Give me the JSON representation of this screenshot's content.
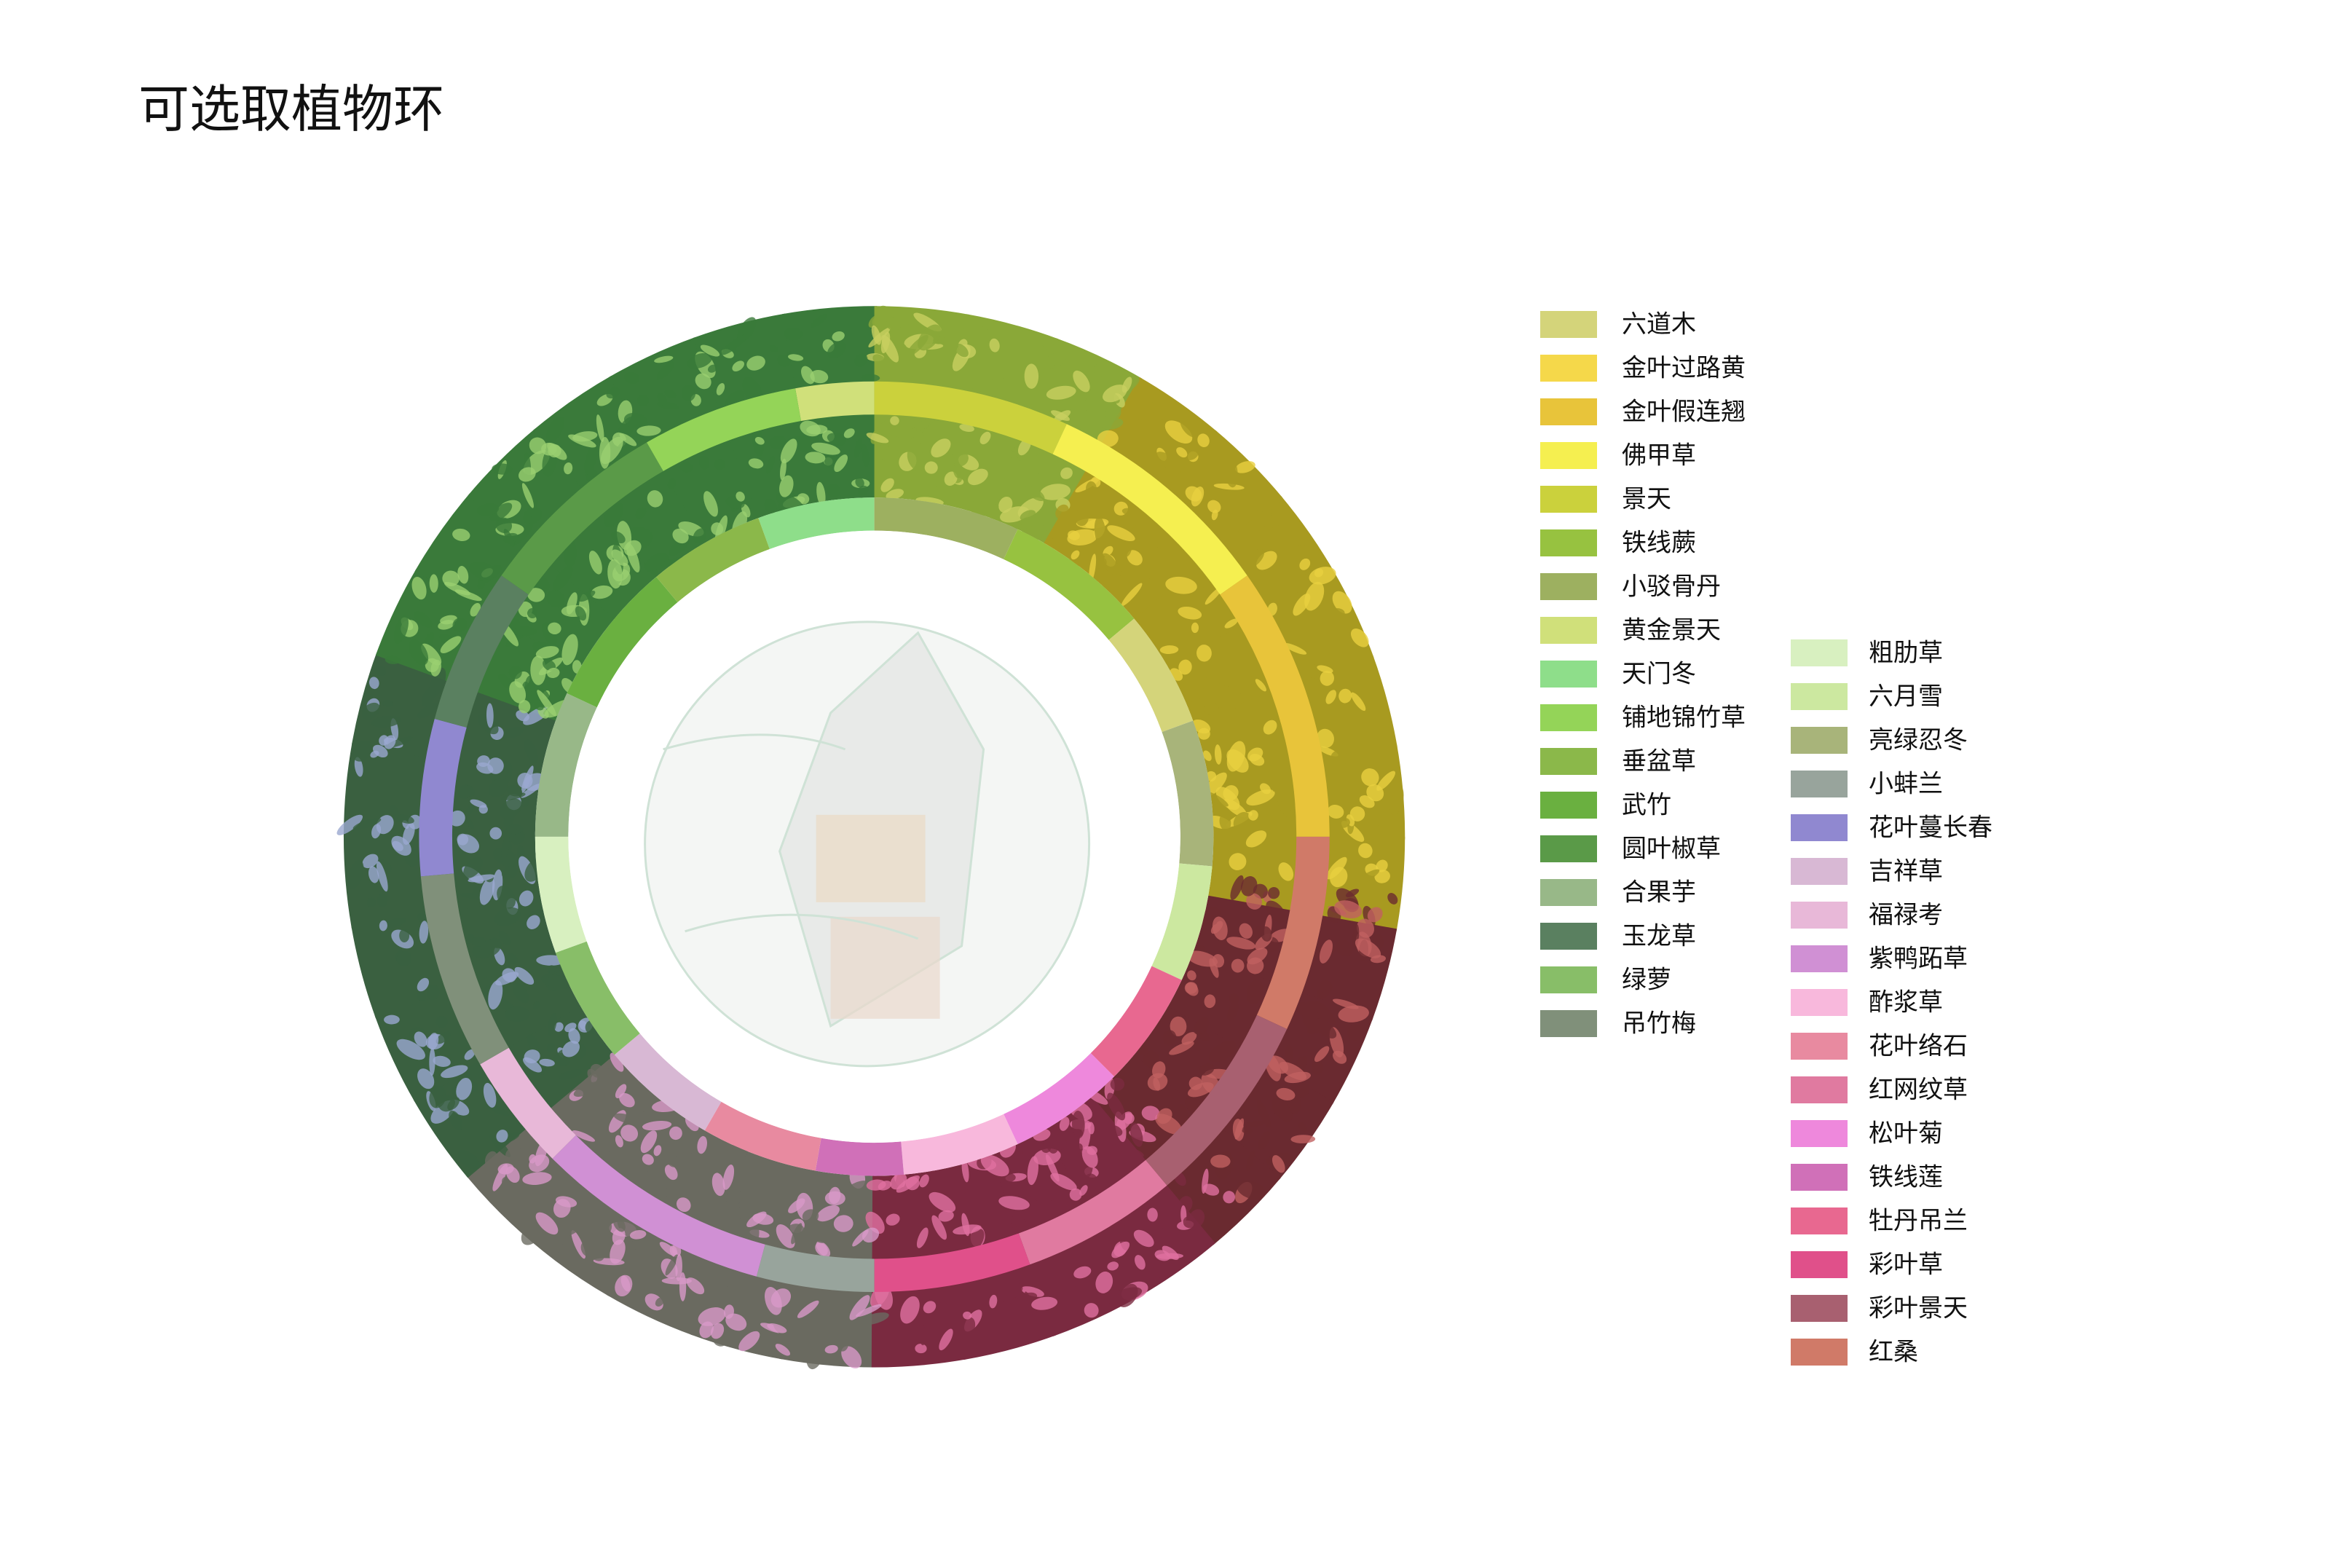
{
  "title": "可选取植物环",
  "legend": {
    "column_1": [
      {
        "label": "六道木",
        "color": "#d4d47a"
      },
      {
        "label": "金叶过路黄",
        "color": "#f5d84a"
      },
      {
        "label": "金叶假连翘",
        "color": "#e8c43a"
      },
      {
        "label": "佛甲草",
        "color": "#f5ef50"
      },
      {
        "label": "景天",
        "color": "#cbd13c"
      },
      {
        "label": "铁线蕨",
        "color": "#97c240"
      },
      {
        "label": "小驳骨丹",
        "color": "#9db060"
      },
      {
        "label": "黄金景天",
        "color": "#d0e07a"
      },
      {
        "label": "天门冬",
        "color": "#8ede8a"
      },
      {
        "label": "铺地锦竹草",
        "color": "#94d458"
      },
      {
        "label": "垂盆草",
        "color": "#8bb84a"
      },
      {
        "label": "武竹",
        "color": "#6ab040"
      },
      {
        "label": "圆叶椒草",
        "color": "#5a9a48"
      },
      {
        "label": "合果芋",
        "color": "#98b888"
      },
      {
        "label": "玉龙草",
        "color": "#5a8060"
      },
      {
        "label": "绿萝",
        "color": "#88be68"
      },
      {
        "label": "吊竹梅",
        "color": "#80907a"
      }
    ],
    "column_2": [
      {
        "label": "粗肋草",
        "color": "#d8f0c0"
      },
      {
        "label": "六月雪",
        "color": "#cce8a0"
      },
      {
        "label": "亮绿忍冬",
        "color": "#a8b47a"
      },
      {
        "label": "小蚌兰",
        "color": "#98a49c"
      },
      {
        "label": "花叶蔓长春",
        "color": "#9088d0"
      },
      {
        "label": "吉祥草",
        "color": "#d8b8d4"
      },
      {
        "label": "福禄考",
        "color": "#e8b8d8"
      },
      {
        "label": "紫鸭跖草",
        "color": "#d090d4"
      },
      {
        "label": "酢浆草",
        "color": "#f8b8dc"
      },
      {
        "label": "花叶络石",
        "color": "#e88aa0"
      },
      {
        "label": "红网纹草",
        "color": "#e07aa0"
      },
      {
        "label": "松叶菊",
        "color": "#ee88dc"
      },
      {
        "label": "铁线莲",
        "color": "#d070b8"
      },
      {
        "label": "牡丹吊兰",
        "color": "#e86890"
      },
      {
        "label": "彩叶草",
        "color": "#e0508a"
      },
      {
        "label": "彩叶景天",
        "color": "#a86070"
      },
      {
        "label": "红桑",
        "color": "#d07a68"
      }
    ]
  }
}
